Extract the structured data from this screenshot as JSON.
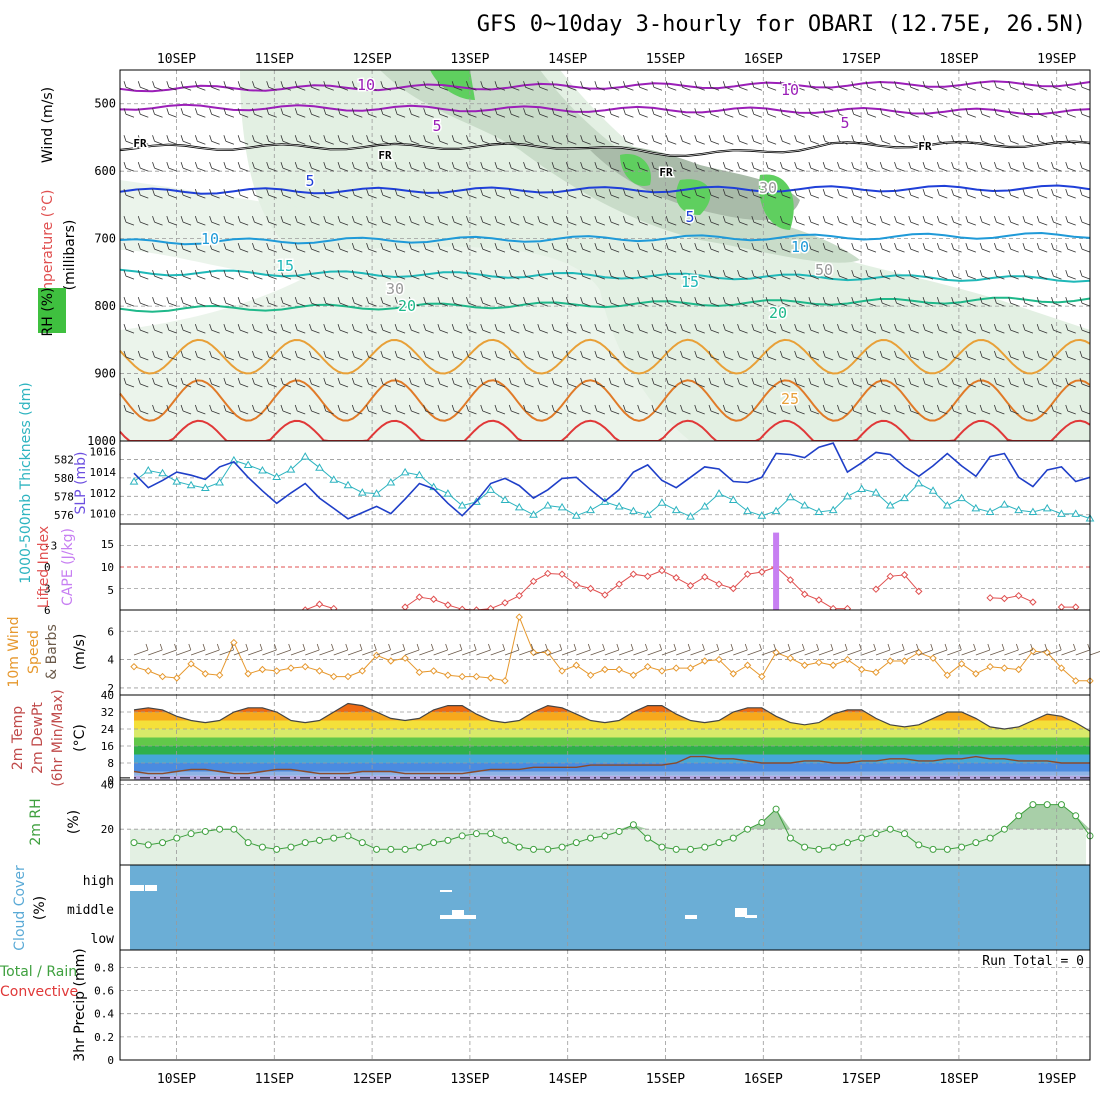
{
  "title": "GFS 0~10day 3-hourly for OBARI (12.75E, 26.5N)",
  "dates": [
    "10SEP",
    "11SEP",
    "12SEP",
    "13SEP",
    "14SEP",
    "15SEP",
    "16SEP",
    "17SEP",
    "18SEP",
    "19SEP"
  ],
  "colors": {
    "rh_light": "#e3f0e3",
    "rh_mid": "#c9dcc9",
    "rh_dark": "#a9bba9",
    "rh_green": "#5fcf5f",
    "cloud": "#6baed6",
    "cape_bar": "#c77ff2",
    "lifted": "#e05050",
    "thick": "#2eb4c0",
    "slp": "#1f3fc8",
    "wind": "#e6982e",
    "rh2m": "#3fa03f"
  },
  "chart_data": [
    {
      "type": "line",
      "panel": "upper-air",
      "ylabel_parts": {
        "temp": "Temperature (°C)",
        "wind": "Wind (m/s)",
        "rh": "RH (%)"
      },
      "ylabel": "(millibars)",
      "yticks": [
        "500",
        "600",
        "700",
        "800",
        "900",
        "1000"
      ],
      "ylim": [
        1000,
        450
      ],
      "contour_labels": [
        "10",
        "10",
        "5",
        "5",
        "FR",
        "FR",
        "FR",
        "FR",
        "5",
        "5",
        "10",
        "10",
        "15",
        "15",
        "20",
        "20",
        "25",
        "30",
        "30",
        "50"
      ],
      "isotherms": [
        {
          "name": "-10",
          "p_start": 478,
          "p_end": 470
        },
        {
          "name": "-5",
          "p_start": 505,
          "p_end": 512
        },
        {
          "name": "FR",
          "p_start": 565,
          "p_end": 560
        },
        {
          "name": "5",
          "p_start": 630,
          "p_end": 625
        },
        {
          "name": "10",
          "p_start": 705,
          "p_end": 695
        },
        {
          "name": "15",
          "p_start": 750,
          "p_end": 760
        },
        {
          "name": "20",
          "p_start": 805,
          "p_end": 790
        }
      ]
    },
    {
      "type": "line",
      "panel": "thickness-slp",
      "ylabel_left": "1000-500mb Thickness (dm)",
      "ylabel_right": "SLP (mb)",
      "yticks_left": [
        "582",
        "580",
        "578",
        "576"
      ],
      "yticks_right": [
        "1016",
        "1014",
        "1012",
        "1010"
      ],
      "ylim_left": [
        575,
        584
      ],
      "ylim_right": [
        1009,
        1017
      ],
      "series": [
        {
          "name": "Thickness",
          "values": [
            579.6,
            580.8,
            580.5,
            579.6,
            579.2,
            578.9,
            579.5,
            581.9,
            581.4,
            580.8,
            580.1,
            580.9,
            582.3,
            581.1,
            579.8,
            579.2,
            578.4,
            578.3,
            579.5,
            580.6,
            580.3,
            579.0,
            578.3,
            577.0,
            577.4,
            578.7,
            577.6,
            576.8,
            576.0,
            577.0,
            576.8,
            575.9,
            576.5,
            577.4,
            576.9,
            576.4,
            576.0,
            577.3,
            576.5,
            575.8,
            576.9,
            578.3,
            577.6,
            576.4,
            575.9,
            576.4,
            577.9,
            577.0,
            576.3,
            576.5,
            578.0,
            578.8,
            578.4,
            577.0,
            577.8,
            579.4,
            578.6,
            577.0,
            577.8,
            576.7,
            576.3,
            577.1,
            576.5,
            576.3,
            576.7,
            576.1,
            576.1,
            575.6
          ]
        },
        {
          "name": "SLP",
          "values": [
            1013.9,
            1012.5,
            1013.2,
            1014.0,
            1013.7,
            1013.3,
            1014.5,
            1015.0,
            1013.5,
            1012.2,
            1011.0,
            1012.0,
            1012.9,
            1011.5,
            1010.5,
            1009.5,
            1010.1,
            1010.7,
            1010.0,
            1011.4,
            1012.9,
            1012.4,
            1011.0,
            1009.8,
            1011.2,
            1012.9,
            1013.4,
            1012.7,
            1011.5,
            1012.3,
            1013.4,
            1013.5,
            1012.3,
            1011.2,
            1012.3,
            1014.0,
            1014.7,
            1013.2,
            1012.5,
            1013.5,
            1014.5,
            1014.3,
            1013.1,
            1013.0,
            1013.5,
            1015.8,
            1015.7,
            1015.4,
            1016.4,
            1016.8,
            1014.0,
            1014.9,
            1015.9,
            1015.7,
            1014.5,
            1013.6,
            1014.6,
            1015.8,
            1014.6,
            1013.6,
            1015.5,
            1015.8,
            1013.5,
            1012.6,
            1014.2,
            1014.5,
            1013.1,
            1013.5
          ]
        }
      ]
    },
    {
      "type": "line",
      "panel": "stability",
      "ylabel_left": "Lifted Index",
      "ylabel_right": "CAPE (J/kg)",
      "yticks_left": [
        "-3",
        "0",
        "3",
        "6"
      ],
      "yticks_right": [
        "15",
        "10",
        "5"
      ],
      "ylim_left": [
        -6,
        6
      ],
      "series": [
        {
          "name": "Lifted Index",
          "values": [
            null,
            null,
            null,
            null,
            null,
            null,
            null,
            null,
            null,
            null,
            null,
            null,
            6.0,
            5.2,
            5.8,
            null,
            null,
            null,
            null,
            5.6,
            4.2,
            4.5,
            5.3,
            5.9,
            6.0,
            5.8,
            5.0,
            4.0,
            2.0,
            0.9,
            1.0,
            2.5,
            3.0,
            3.9,
            2.4,
            1.0,
            1.3,
            0.5,
            1.5,
            2.6,
            1.4,
            2.4,
            3.0,
            1.0,
            0.7,
            0.0,
            1.8,
            3.8,
            4.6,
            5.8,
            5.8,
            null,
            3.1,
            1.3,
            1.1,
            3.4,
            null,
            null,
            null,
            null,
            4.3,
            4.4,
            4.0,
            4.9,
            null,
            5.6,
            5.6,
            null
          ]
        },
        {
          "name": "CAPE",
          "values": [
            0,
            0,
            0,
            0,
            0,
            0,
            0,
            0,
            0,
            0,
            0,
            0,
            0,
            0,
            0,
            0,
            0,
            0,
            0,
            0,
            0,
            0,
            0,
            0,
            0,
            0,
            0,
            0,
            0,
            0,
            0,
            0,
            0,
            0,
            0,
            0,
            0,
            0,
            0,
            0,
            0,
            0,
            0,
            0,
            0,
            18,
            0,
            0,
            0,
            0,
            0,
            0,
            0,
            0,
            0,
            0,
            0,
            0,
            0,
            0,
            0,
            0,
            0,
            0,
            0,
            0,
            0,
            0
          ]
        }
      ]
    },
    {
      "type": "line",
      "panel": "wind10m",
      "ylabel_parts": {
        "title": "10m Wind",
        "speed": "Speed",
        "barbs": "& Barbs",
        "units": "(m/s)"
      },
      "yticks": [
        "6",
        "4",
        "2"
      ],
      "ylim": [
        1.5,
        7.5
      ],
      "series": [
        {
          "name": "10m Wind Speed",
          "values": [
            3.5,
            3.2,
            2.8,
            2.7,
            3.7,
            3.0,
            2.9,
            5.2,
            3.0,
            3.3,
            3.2,
            3.4,
            3.5,
            3.2,
            2.8,
            2.8,
            3.2,
            4.3,
            3.9,
            4.1,
            3.1,
            3.2,
            2.9,
            2.8,
            2.8,
            2.7,
            2.5,
            7.0,
            4.5,
            4.5,
            3.2,
            3.6,
            2.9,
            3.3,
            3.3,
            2.9,
            3.5,
            3.2,
            3.4,
            3.4,
            3.9,
            4.0,
            3.0,
            3.6,
            2.8,
            4.5,
            4.1,
            3.6,
            3.8,
            3.6,
            4.0,
            3.3,
            3.1,
            3.9,
            3.9,
            4.5,
            4.1,
            2.9,
            3.7,
            3.0,
            3.5,
            3.4,
            3.3,
            4.6,
            4.5,
            3.4,
            2.5,
            2.5
          ]
        }
      ]
    },
    {
      "type": "line",
      "panel": "temp2m",
      "ylabel_parts": {
        "temp": "2m Temp",
        "dewpt": "2m DewPt",
        "minmax": "(6hr Min/Max)",
        "units": "(°C)"
      },
      "yticks": [
        "40",
        "32",
        "24",
        "16",
        "8",
        "0"
      ],
      "ylim": [
        0,
        40
      ],
      "series": [
        {
          "name": "2m Temp",
          "values": [
            33,
            34,
            33,
            30,
            28,
            27,
            28,
            32,
            34,
            34,
            32,
            28,
            27,
            28,
            32,
            36,
            35,
            32,
            29,
            28,
            29,
            33,
            35,
            35,
            31,
            28,
            27,
            28,
            32,
            35,
            34,
            31,
            28,
            27,
            28,
            32,
            35,
            35,
            31,
            28,
            27,
            28,
            32,
            34,
            34,
            30,
            27,
            26,
            27,
            31,
            33,
            33,
            29,
            26,
            25,
            26,
            29,
            32,
            32,
            29,
            25,
            24,
            25,
            28,
            31,
            30,
            27,
            23
          ]
        },
        {
          "name": "2m DewPt",
          "values": [
            4,
            3,
            3,
            4,
            5,
            5,
            4,
            3,
            3,
            4,
            5,
            5,
            4,
            3,
            3,
            3,
            4,
            4,
            4,
            3,
            3,
            3,
            3,
            3,
            4,
            5,
            5,
            5,
            6,
            6,
            6,
            6,
            7,
            7,
            7,
            7,
            7,
            7,
            8,
            11,
            11,
            10,
            10,
            9,
            8,
            8,
            8,
            9,
            9,
            8,
            8,
            9,
            9,
            10,
            10,
            9,
            9,
            10,
            10,
            11,
            10,
            10,
            9,
            9,
            9,
            8,
            8,
            8
          ]
        }
      ]
    },
    {
      "type": "area",
      "panel": "rh2m",
      "ylabel": "2m RH",
      "units": "(%)",
      "yticks": [
        "40",
        "20"
      ],
      "ylim": [
        4,
        42
      ],
      "series": [
        {
          "name": "2m RH",
          "values": [
            14,
            13,
            14,
            16,
            18,
            19,
            20,
            20,
            14,
            12,
            11,
            12,
            14,
            15,
            16,
            17,
            14,
            11,
            11,
            11,
            12,
            14,
            15,
            17,
            18,
            18,
            15,
            12,
            11,
            11,
            12,
            14,
            16,
            17,
            19,
            22,
            16,
            12,
            11,
            11,
            12,
            14,
            16,
            20,
            23,
            29,
            16,
            12,
            11,
            12,
            14,
            16,
            18,
            20,
            18,
            13,
            11,
            11,
            12,
            14,
            16,
            20,
            26,
            31,
            31,
            31,
            26,
            17
          ]
        }
      ]
    },
    {
      "type": "bar",
      "panel": "cloud",
      "ylabel": "Cloud Cover",
      "units": "(%)",
      "yticks": [
        "high",
        "middle",
        "low"
      ]
    },
    {
      "type": "bar",
      "panel": "precip",
      "ylabel_left": "Total / Rain",
      "ylabel_left2": "Convective",
      "ylabel": "3hr Precip (mm)",
      "yticks": [
        "0.8",
        "0.6",
        "0.4",
        "0.2",
        "0"
      ],
      "ylim": [
        0,
        0.95
      ],
      "run_total_label": "Run Total = 0"
    }
  ]
}
